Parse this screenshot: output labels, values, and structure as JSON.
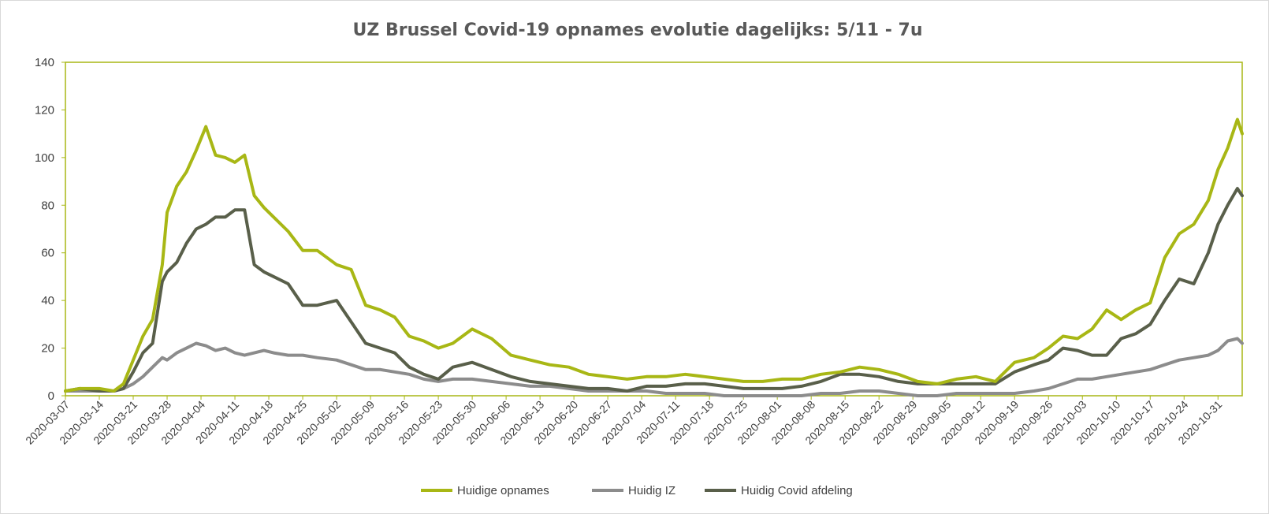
{
  "chart_data": {
    "type": "line",
    "title": "UZ Brussel Covid-19 opnames evolutie dagelijks: 5/11 - 7u",
    "xlabel": "",
    "ylabel": "",
    "ylim": [
      0,
      140
    ],
    "yticks": [
      "0",
      "20",
      "40",
      "60",
      "80",
      "100",
      "120",
      "140"
    ],
    "x_start": "2020-03-07",
    "x_end": "2020-11-05",
    "x_ticks": [
      "2020-03-07",
      "2020-03-14",
      "2020-03-21",
      "2020-03-28",
      "2020-04-04",
      "2020-04-11",
      "2020-04-18",
      "2020-04-25",
      "2020-05-02",
      "2020-05-09",
      "2020-05-16",
      "2020-05-23",
      "2020-05-30",
      "2020-06-06",
      "2020-06-13",
      "2020-06-20",
      "2020-06-27",
      "2020-07-04",
      "2020-07-11",
      "2020-07-18",
      "2020-07-25",
      "2020-08-01",
      "2020-08-08",
      "2020-08-15",
      "2020-08-22",
      "2020-08-29",
      "2020-09-05",
      "2020-09-12",
      "2020-09-19",
      "2020-09-26",
      "2020-10-03",
      "2020-10-10",
      "2020-10-17",
      "2020-10-24",
      "2020-10-31"
    ],
    "legend_position": "bottom",
    "grid": false,
    "x": [
      "2020-03-07",
      "2020-03-10",
      "2020-03-14",
      "2020-03-17",
      "2020-03-19",
      "2020-03-21",
      "2020-03-23",
      "2020-03-25",
      "2020-03-27",
      "2020-03-28",
      "2020-03-30",
      "2020-04-01",
      "2020-04-03",
      "2020-04-05",
      "2020-04-07",
      "2020-04-09",
      "2020-04-11",
      "2020-04-13",
      "2020-04-15",
      "2020-04-17",
      "2020-04-19",
      "2020-04-22",
      "2020-04-25",
      "2020-04-28",
      "2020-05-02",
      "2020-05-05",
      "2020-05-08",
      "2020-05-11",
      "2020-05-14",
      "2020-05-17",
      "2020-05-20",
      "2020-05-23",
      "2020-05-26",
      "2020-05-30",
      "2020-06-03",
      "2020-06-07",
      "2020-06-11",
      "2020-06-15",
      "2020-06-19",
      "2020-06-23",
      "2020-06-27",
      "2020-07-01",
      "2020-07-05",
      "2020-07-09",
      "2020-07-13",
      "2020-07-17",
      "2020-07-21",
      "2020-07-25",
      "2020-07-29",
      "2020-08-02",
      "2020-08-06",
      "2020-08-10",
      "2020-08-14",
      "2020-08-18",
      "2020-08-22",
      "2020-08-26",
      "2020-08-30",
      "2020-09-03",
      "2020-09-07",
      "2020-09-11",
      "2020-09-15",
      "2020-09-19",
      "2020-09-23",
      "2020-09-26",
      "2020-09-29",
      "2020-10-02",
      "2020-10-05",
      "2020-10-08",
      "2020-10-11",
      "2020-10-14",
      "2020-10-17",
      "2020-10-20",
      "2020-10-23",
      "2020-10-26",
      "2020-10-29",
      "2020-10-31",
      "2020-11-02",
      "2020-11-04",
      "2020-11-05"
    ],
    "series": [
      {
        "name": "Huidige opnames",
        "color": "#a8b715",
        "values": [
          2,
          3,
          3,
          2,
          5,
          15,
          25,
          32,
          55,
          77,
          88,
          94,
          103,
          113,
          101,
          100,
          98,
          101,
          84,
          79,
          75,
          69,
          61,
          61,
          55,
          53,
          38,
          36,
          33,
          25,
          23,
          20,
          22,
          28,
          24,
          17,
          15,
          13,
          12,
          9,
          8,
          7,
          8,
          8,
          9,
          8,
          7,
          6,
          6,
          7,
          7,
          9,
          10,
          12,
          11,
          9,
          6,
          5,
          7,
          8,
          6,
          14,
          16,
          20,
          25,
          24,
          28,
          36,
          32,
          36,
          39,
          58,
          68,
          72,
          82,
          95,
          104,
          116,
          110
        ]
      },
      {
        "name": "Huidig IZ",
        "color": "#8c8c8c",
        "values": [
          2,
          2,
          2,
          2,
          3,
          5,
          8,
          12,
          16,
          15,
          18,
          20,
          22,
          21,
          19,
          20,
          18,
          17,
          18,
          19,
          18,
          17,
          17,
          16,
          15,
          13,
          11,
          11,
          10,
          9,
          7,
          6,
          7,
          7,
          6,
          5,
          4,
          4,
          3,
          2,
          2,
          2,
          2,
          1,
          1,
          1,
          0,
          0,
          0,
          0,
          0,
          1,
          1,
          2,
          2,
          1,
          0,
          0,
          1,
          1,
          1,
          1,
          2,
          3,
          5,
          7,
          7,
          8,
          9,
          10,
          11,
          13,
          15,
          16,
          17,
          19,
          23,
          24,
          22
        ]
      },
      {
        "name": "Huidig Covid afdeling",
        "color": "#595f4a",
        "values": [
          2,
          3,
          2,
          2,
          3,
          10,
          18,
          22,
          48,
          52,
          56,
          64,
          70,
          72,
          75,
          75,
          78,
          78,
          55,
          52,
          50,
          47,
          38,
          38,
          40,
          31,
          22,
          20,
          18,
          12,
          9,
          7,
          12,
          14,
          11,
          8,
          6,
          5,
          4,
          3,
          3,
          2,
          4,
          4,
          5,
          5,
          4,
          3,
          3,
          3,
          4,
          6,
          9,
          9,
          8,
          6,
          5,
          5,
          5,
          5,
          5,
          10,
          13,
          15,
          20,
          19,
          17,
          17,
          24,
          26,
          30,
          40,
          49,
          47,
          60,
          72,
          80,
          87,
          84
        ]
      }
    ]
  }
}
